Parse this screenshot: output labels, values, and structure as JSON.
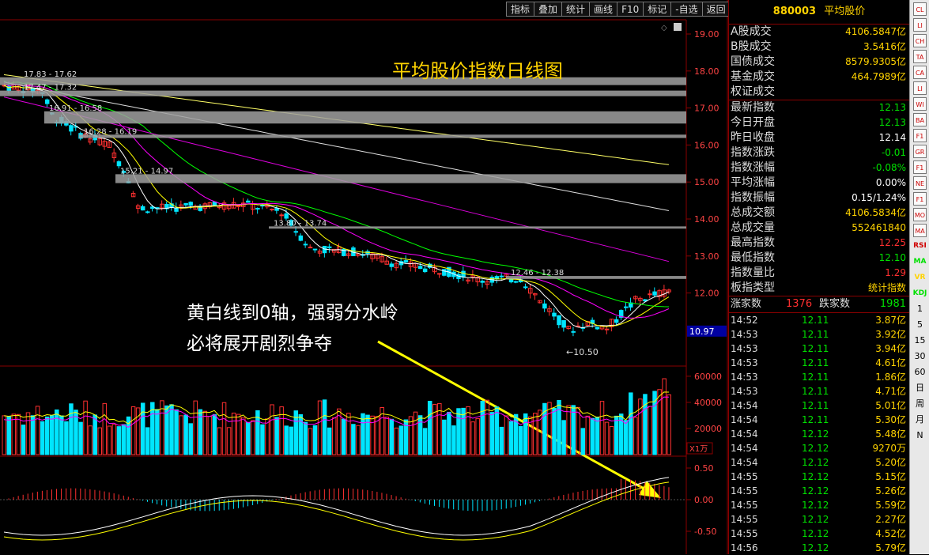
{
  "toolbar": [
    "指标",
    "叠加",
    "统计",
    "画线",
    "F10",
    "标记",
    "-自选",
    "返回"
  ],
  "chart": {
    "title": "平均股价指数日线图",
    "annotation_line1": "黄白线到0轴，强弱分水岭",
    "annotation_line2": "必将展开剧烈争夺",
    "price_ticks": [
      "19.00",
      "18.00",
      "17.00",
      "16.00",
      "15.00",
      "14.00",
      "13.00",
      "12.00"
    ],
    "current_price": "10.97",
    "volume_ticks": [
      "60000",
      "40000",
      "20000"
    ],
    "volume_unit": "X1万",
    "macd_ticks": [
      "0.50",
      "0.00",
      "-0.50"
    ],
    "gap_labels": [
      "17.83 - 17.62",
      "17.47 - 17.32",
      "16.91 - 16.58",
      "16.28 - 16.19",
      "15.21 - 14.97",
      "13.80 - 13.74",
      "12.46 - 12.38"
    ],
    "low_label": "←10.50",
    "colors": {
      "up": "#ff3030",
      "down": "#00e5ff",
      "ma5": "#ffffff",
      "ma10": "#ffff00",
      "ma20": "#ff00ff",
      "ma60": "#00ff00",
      "grid": "#8a0000",
      "accent": "#ffd300"
    }
  },
  "panel": {
    "code": "880003",
    "name": "平均股价",
    "rows": [
      {
        "label": "A股成交",
        "value": "4106.5847亿",
        "color": "#ffd300"
      },
      {
        "label": "B股成交",
        "value": "3.5416亿",
        "color": "#ffd300"
      },
      {
        "label": "国债成交",
        "value": "8579.9305亿",
        "color": "#ffd300"
      },
      {
        "label": "基金成交",
        "value": "464.7989亿",
        "color": "#ffd300"
      },
      {
        "label": "权证成交",
        "value": "",
        "color": "#ffd300"
      },
      {
        "label": "最新指数",
        "value": "12.13",
        "color": "#00e000"
      },
      {
        "label": "今日开盘",
        "value": "12.13",
        "color": "#00e000"
      },
      {
        "label": "昨日收盘",
        "value": "12.14",
        "color": "#ffffff"
      },
      {
        "label": "指数涨跌",
        "value": "-0.01",
        "color": "#00e000"
      },
      {
        "label": "指数涨幅",
        "value": "-0.08%",
        "color": "#00e000"
      },
      {
        "label": "平均涨幅",
        "value": "0.00%",
        "color": "#ffffff"
      },
      {
        "label": "指数振幅",
        "value": "0.15/1.24%",
        "color": "#ffffff"
      },
      {
        "label": "总成交额",
        "value": "4106.5834亿",
        "color": "#ffd300"
      },
      {
        "label": "总成交量",
        "value": "552461840",
        "color": "#ffd300"
      },
      {
        "label": "最高指数",
        "value": "12.25",
        "color": "#ff3030"
      },
      {
        "label": "最低指数",
        "value": "12.10",
        "color": "#00e000"
      },
      {
        "label": "指数量比",
        "value": "1.29",
        "color": "#ff3030"
      },
      {
        "label": "板指类型",
        "value": "统计指数",
        "color": "#ffd300"
      }
    ],
    "up_label": "涨家数",
    "up_count": "1376",
    "down_label": "跌家数",
    "down_count": "1981",
    "ticks": [
      {
        "time": "14:52",
        "price": "12.11",
        "amount": "3.87亿"
      },
      {
        "time": "14:53",
        "price": "12.11",
        "amount": "3.92亿"
      },
      {
        "time": "14:53",
        "price": "12.11",
        "amount": "3.94亿"
      },
      {
        "time": "14:53",
        "price": "12.11",
        "amount": "4.61亿"
      },
      {
        "time": "14:53",
        "price": "12.11",
        "amount": "1.86亿"
      },
      {
        "time": "14:53",
        "price": "12.11",
        "amount": "4.71亿"
      },
      {
        "time": "14:54",
        "price": "12.11",
        "amount": "5.01亿"
      },
      {
        "time": "14:54",
        "price": "12.11",
        "amount": "5.30亿"
      },
      {
        "time": "14:54",
        "price": "12.12",
        "amount": "5.48亿"
      },
      {
        "time": "14:54",
        "price": "12.12",
        "amount": "9270万"
      },
      {
        "time": "14:54",
        "price": "12.12",
        "amount": "5.20亿"
      },
      {
        "time": "14:55",
        "price": "12.12",
        "amount": "5.15亿"
      },
      {
        "time": "14:55",
        "price": "12.12",
        "amount": "5.26亿"
      },
      {
        "time": "14:55",
        "price": "12.12",
        "amount": "5.59亿"
      },
      {
        "time": "14:55",
        "price": "12.12",
        "amount": "2.27亿"
      },
      {
        "time": "14:55",
        "price": "12.12",
        "amount": "4.52亿"
      },
      {
        "time": "14:56",
        "price": "12.12",
        "amount": "5.79亿"
      }
    ]
  },
  "strip": {
    "icons": [
      "close-icon",
      "list-icon",
      "chart-icon",
      "table-icon",
      "candle-icon",
      "line-icon",
      "window-icon",
      "bars-icon",
      "f10-icon",
      "grid-icon",
      "f11-icon",
      "news-icon",
      "f12-icon",
      "monitor-icon",
      "macd-icon"
    ],
    "indicators": [
      "RSI",
      "MA",
      "VR",
      "KDJ"
    ],
    "periods": [
      "1",
      "5",
      "15",
      "30",
      "60",
      "日",
      "周",
      "月",
      "N"
    ]
  }
}
